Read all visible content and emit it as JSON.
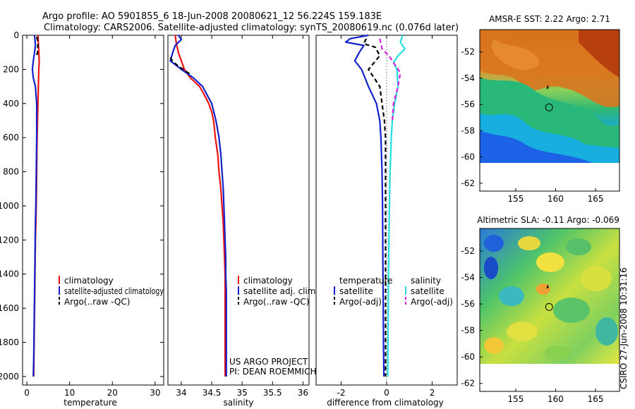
{
  "header": {
    "title_line1": "Argo profile: AO 5901855_6 18-Jun-2008 20080621_12 56.224S 159.183E",
    "title_line2": "Climatology: CARS2006. Satellite-adjusted climatology: synTS_20080619.nc (0.076d later)"
  },
  "footer_credit": "CSIRO 27-Jun-2008 10:31:16",
  "colors": {
    "red": "#ee1111",
    "blue": "#1122cc",
    "black": "#000000",
    "cyan": "#22dddd",
    "magenta": "#dd22dd"
  },
  "chart_data": [
    {
      "type": "line",
      "name": "temperature-panel",
      "xlabel": "temperature",
      "xlim": [
        -1,
        32
      ],
      "xticks": [
        0,
        10,
        20,
        30
      ],
      "ylim": [
        2050,
        0
      ],
      "yticks": [
        0,
        200,
        400,
        600,
        800,
        1000,
        1200,
        1400,
        1600,
        1800,
        2000
      ],
      "legend": [
        "climatology",
        "satellite-adjusted climatology",
        "Argo(..raw -QC)"
      ],
      "series": [
        {
          "name": "climatology",
          "color": "red",
          "dash": false,
          "points": [
            [
              2.6,
              0
            ],
            [
              2.7,
              50
            ],
            [
              2.8,
              100
            ],
            [
              2.9,
              150
            ],
            [
              2.8,
              200
            ],
            [
              2.7,
              300
            ],
            [
              2.6,
              400
            ],
            [
              2.5,
              500
            ],
            [
              2.4,
              600
            ],
            [
              2.35,
              700
            ],
            [
              2.3,
              800
            ],
            [
              2.25,
              900
            ],
            [
              2.2,
              1000
            ],
            [
              2.1,
              1100
            ],
            [
              2.0,
              1200
            ],
            [
              1.95,
              1300
            ],
            [
              1.9,
              1400
            ],
            [
              1.85,
              1500
            ],
            [
              1.8,
              1600
            ],
            [
              1.75,
              1700
            ],
            [
              1.7,
              1800
            ],
            [
              1.65,
              1900
            ],
            [
              1.6,
              2000
            ]
          ]
        },
        {
          "name": "satellite-adjusted climatology",
          "color": "blue",
          "dash": false,
          "points": [
            [
              1.8,
              0
            ],
            [
              1.9,
              30
            ],
            [
              2.0,
              60
            ],
            [
              1.8,
              100
            ],
            [
              1.5,
              150
            ],
            [
              1.3,
              200
            ],
            [
              1.5,
              250
            ],
            [
              2.0,
              300
            ],
            [
              2.3,
              400
            ],
            [
              2.3,
              500
            ],
            [
              2.3,
              600
            ],
            [
              2.25,
              700
            ],
            [
              2.2,
              800
            ],
            [
              2.15,
              900
            ],
            [
              2.1,
              1000
            ],
            [
              2.0,
              1100
            ],
            [
              1.95,
              1200
            ],
            [
              1.9,
              1300
            ],
            [
              1.85,
              1400
            ],
            [
              1.8,
              1500
            ],
            [
              1.75,
              1600
            ],
            [
              1.7,
              1700
            ],
            [
              1.65,
              1800
            ],
            [
              1.6,
              1900
            ],
            [
              1.5,
              2000
            ]
          ]
        },
        {
          "name": "Argo(..raw -QC)",
          "color": "black",
          "dash": true,
          "points": [
            [
              2.3,
              10
            ],
            [
              2.5,
              30
            ],
            [
              2.6,
              60
            ],
            [
              2.5,
              100
            ],
            [
              2.2,
              130
            ]
          ]
        }
      ]
    },
    {
      "type": "line",
      "name": "salinity-panel",
      "xlabel": "salinity",
      "xlim": [
        33.78,
        36.1
      ],
      "xticks": [
        34,
        34.5,
        35,
        35.5,
        36
      ],
      "ylim": [
        2050,
        0
      ],
      "legend": [
        "climatology",
        "satellite adj. clim.",
        "Argo(..raw -QC)"
      ],
      "annotations": [
        "US ARGO PROJECT",
        "PI: DEAN ROEMMICH"
      ],
      "series": [
        {
          "name": "climatology",
          "color": "red",
          "dash": false,
          "points": [
            [
              33.9,
              0
            ],
            [
              33.92,
              50
            ],
            [
              33.95,
              100
            ],
            [
              34.0,
              150
            ],
            [
              34.05,
              200
            ],
            [
              34.15,
              250
            ],
            [
              34.3,
              300
            ],
            [
              34.38,
              350
            ],
            [
              34.45,
              400
            ],
            [
              34.5,
              450
            ],
            [
              34.53,
              500
            ],
            [
              34.56,
              600
            ],
            [
              34.6,
              700
            ],
            [
              34.62,
              800
            ],
            [
              34.65,
              900
            ],
            [
              34.67,
              1000
            ],
            [
              34.69,
              1100
            ],
            [
              34.7,
              1200
            ],
            [
              34.71,
              1300
            ],
            [
              34.72,
              1400
            ],
            [
              34.72,
              1500
            ],
            [
              34.72,
              1600
            ],
            [
              34.72,
              1700
            ],
            [
              34.72,
              1800
            ],
            [
              34.72,
              1900
            ],
            [
              34.72,
              2000
            ]
          ]
        },
        {
          "name": "satellite adj. clim.",
          "color": "blue",
          "dash": false,
          "points": [
            [
              33.95,
              0
            ],
            [
              34.0,
              25
            ],
            [
              33.9,
              60
            ],
            [
              33.86,
              100
            ],
            [
              33.82,
              150
            ],
            [
              34.0,
              200
            ],
            [
              34.2,
              250
            ],
            [
              34.35,
              300
            ],
            [
              34.5,
              400
            ],
            [
              34.57,
              500
            ],
            [
              34.62,
              600
            ],
            [
              34.65,
              700
            ],
            [
              34.67,
              800
            ],
            [
              34.69,
              900
            ],
            [
              34.7,
              1000
            ],
            [
              34.71,
              1100
            ],
            [
              34.72,
              1200
            ],
            [
              34.73,
              1300
            ],
            [
              34.73,
              1400
            ],
            [
              34.74,
              1500
            ],
            [
              34.74,
              1600
            ],
            [
              34.74,
              1700
            ],
            [
              34.74,
              1800
            ],
            [
              34.74,
              1900
            ],
            [
              34.74,
              2000
            ]
          ]
        },
        {
          "name": "Argo(..raw -QC)",
          "color": "black",
          "dash": true,
          "points": [
            [
              33.82,
              130
            ],
            [
              33.86,
              155
            ],
            [
              33.95,
              180
            ],
            [
              34.05,
              205
            ],
            [
              34.15,
              230
            ]
          ]
        }
      ]
    },
    {
      "type": "line",
      "name": "difference-panel",
      "xlabel": "difference from climatology",
      "xlim": [
        -3.1,
        3.1
      ],
      "xticks": [
        -2,
        0,
        2
      ],
      "ylim": [
        2050,
        0
      ],
      "legend_temperature_header": "temperature",
      "legend_salinity_header": "salinity",
      "legend": [
        "satellite",
        "Argo(-adj)",
        "satellite",
        "Argo(-adj)"
      ],
      "series": [
        {
          "name": "temperature satellite",
          "color": "blue",
          "dash": false,
          "points": [
            [
              -0.8,
              0
            ],
            [
              -1.6,
              20
            ],
            [
              -1.8,
              40
            ],
            [
              -1.0,
              60
            ],
            [
              -1.2,
              100
            ],
            [
              -1.4,
              150
            ],
            [
              -1.1,
              200
            ],
            [
              -0.8,
              300
            ],
            [
              -0.45,
              400
            ],
            [
              -0.3,
              500
            ],
            [
              -0.25,
              600
            ],
            [
              -0.2,
              800
            ],
            [
              -0.18,
              1000
            ],
            [
              -0.17,
              1200
            ],
            [
              -0.16,
              1400
            ],
            [
              -0.15,
              1600
            ],
            [
              -0.14,
              1800
            ],
            [
              -0.12,
              2000
            ]
          ]
        },
        {
          "name": "temperature Argo(-adj)",
          "color": "black",
          "dash": true,
          "points": [
            [
              -0.9,
              20
            ],
            [
              -1.0,
              50
            ],
            [
              -0.5,
              70
            ],
            [
              -0.3,
              120
            ],
            [
              -0.8,
              200
            ],
            [
              -0.3,
              300
            ],
            [
              -0.2,
              400
            ],
            [
              -0.1,
              500
            ],
            [
              -0.05,
              600
            ],
            [
              -0.05,
              1000
            ],
            [
              -0.05,
              1400
            ],
            [
              -0.05,
              1800
            ],
            [
              -0.05,
              2000
            ]
          ]
        },
        {
          "name": "salinity satellite",
          "color": "cyan",
          "dash": false,
          "points": [
            [
              0.7,
              0
            ],
            [
              0.6,
              40
            ],
            [
              0.8,
              80
            ],
            [
              0.5,
              120
            ],
            [
              0.3,
              160
            ],
            [
              0.45,
              200
            ],
            [
              0.5,
              300
            ],
            [
              0.35,
              400
            ],
            [
              0.25,
              500
            ],
            [
              0.2,
              600
            ],
            [
              0.18,
              700
            ],
            [
              0.15,
              800
            ],
            [
              0.12,
              1000
            ],
            [
              0.1,
              1200
            ],
            [
              0.08,
              1400
            ],
            [
              0.07,
              1600
            ],
            [
              0.06,
              1800
            ],
            [
              0.05,
              2000
            ]
          ]
        },
        {
          "name": "salinity Argo(-adj)",
          "color": "magenta",
          "dash": true,
          "points": [
            [
              -0.3,
              20
            ],
            [
              -0.2,
              80
            ],
            [
              0.1,
              120
            ],
            [
              0.3,
              160
            ],
            [
              0.6,
              220
            ],
            [
              0.5,
              300
            ],
            [
              0.3,
              400
            ],
            [
              0.25,
              500
            ]
          ]
        }
      ]
    },
    {
      "type": "heatmap",
      "name": "sst-map",
      "title": "AMSR-E SST: 2.22 Argo: 2.71",
      "xlim": [
        150.5,
        168
      ],
      "xticks": [
        155,
        160,
        165
      ],
      "ylim": [
        -62.6,
        -50.3
      ],
      "yticks": [
        -52,
        -54,
        -56,
        -58,
        -60,
        -62
      ],
      "data_bottom_lat": -60,
      "float_position": [
        159.183,
        -56.224
      ]
    },
    {
      "type": "heatmap",
      "name": "sla-map",
      "title": "Altimetric SLA: -0.11 Argo: -0.069",
      "xlim": [
        150.5,
        168
      ],
      "xticks": [
        155,
        160,
        165
      ],
      "ylim": [
        -62.6,
        -50.3
      ],
      "yticks": [
        -52,
        -54,
        -56,
        -58,
        -60,
        -62
      ],
      "data_bottom_lat": -60,
      "float_position": [
        159.183,
        -56.224
      ]
    }
  ]
}
